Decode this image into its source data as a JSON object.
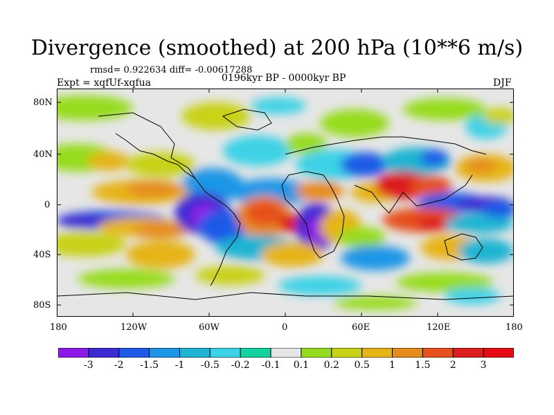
{
  "title": "Divergence (smoothed) at 200 hPa (10**6 m/s)",
  "stats": "rmsd= 0.922634 diff= -0.00617288",
  "experiment": "Expt = xqfUf-xqfua",
  "period": "0196kyr BP - 0000kyr BP",
  "season": "DJF",
  "map": {
    "lat_ticks": [
      "80N",
      "40N",
      "0",
      "40S",
      "80S"
    ],
    "lon_ticks": [
      "180",
      "120W",
      "60W",
      "0",
      "60E",
      "120E",
      "180"
    ]
  },
  "colorbar": {
    "labels": [
      "-3",
      "-2",
      "-1.5",
      "-1",
      "-0.5",
      "-0.2",
      "-0.1",
      "0.1",
      "0.2",
      "0.5",
      "1",
      "1.5",
      "2",
      "3"
    ],
    "colors": [
      "#8c1ae6",
      "#3c2ad2",
      "#1e5ae6",
      "#1e96e6",
      "#1eb4d2",
      "#3cd2e6",
      "#14d2a0",
      "#e6e6e6",
      "#96dc1e",
      "#c8d214",
      "#e6b414",
      "#e68c1e",
      "#e6501e",
      "#dc1e1e",
      "#e60a14"
    ]
  }
}
